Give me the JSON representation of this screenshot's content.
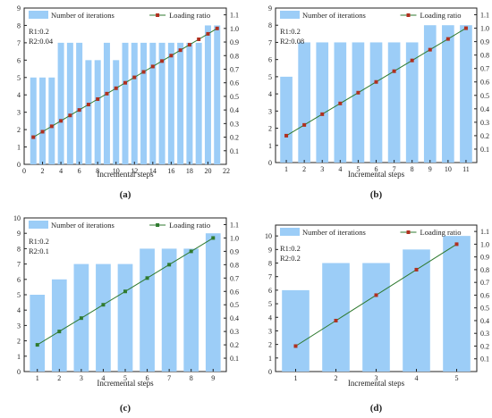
{
  "figure": {
    "colors": {
      "bar": "#9ccdf7",
      "line": "#2f7a2f",
      "axis": "#222222",
      "marker_a": "#b0301f",
      "marker_b": "#2f7a2f"
    }
  },
  "chart_data": [
    {
      "type": "bar",
      "panel_label": "(a)",
      "xlabel": "Incremental steps",
      "legend": [
        "Number of iterations",
        "Loading ratio"
      ],
      "annotations": [
        "R1:0.2",
        "R2:0.04"
      ],
      "x": [
        1,
        2,
        3,
        4,
        5,
        6,
        7,
        8,
        9,
        10,
        11,
        12,
        13,
        14,
        15,
        16,
        17,
        18,
        19,
        20,
        21
      ],
      "series": [
        {
          "name": "Number of iterations",
          "axis": "left",
          "values": [
            5,
            5,
            5,
            7,
            7,
            7,
            6,
            6,
            7,
            6,
            7,
            7,
            7,
            7,
            7,
            7,
            7,
            7,
            7,
            8,
            8
          ]
        },
        {
          "name": "Loading ratio",
          "axis": "right",
          "values": [
            0.2,
            0.24,
            0.28,
            0.32,
            0.36,
            0.4,
            0.44,
            0.48,
            0.52,
            0.56,
            0.6,
            0.64,
            0.68,
            0.72,
            0.76,
            0.8,
            0.84,
            0.88,
            0.92,
            0.96,
            1.0
          ]
        }
      ],
      "xlim": [
        0,
        22
      ],
      "xticks": [
        0,
        2,
        4,
        6,
        8,
        10,
        12,
        14,
        16,
        18,
        20,
        22
      ],
      "ylim": [
        0,
        9
      ],
      "yticks": [
        0,
        1,
        2,
        3,
        4,
        5,
        6,
        7,
        8,
        9
      ],
      "y2lim": [
        0.0,
        1.15
      ],
      "y2ticks": [
        "0.1",
        "0.2",
        "0.3",
        "0.4",
        "0.5",
        "0.6",
        "0.7",
        "0.8",
        "0.9",
        "1.0",
        "1.1"
      ],
      "marker_color": "#b0301f"
    },
    {
      "type": "bar",
      "panel_label": "(b)",
      "xlabel": "Incremental steps",
      "legend": [
        "Number of iterations",
        "Loading ratio"
      ],
      "annotations": [
        "R1:0.2",
        "R2:0.08"
      ],
      "x": [
        1,
        2,
        3,
        4,
        5,
        6,
        7,
        8,
        9,
        10,
        11
      ],
      "series": [
        {
          "name": "Number of iterations",
          "axis": "left",
          "values": [
            5,
            7,
            7,
            7,
            7,
            7,
            7,
            7,
            8,
            8,
            8
          ]
        },
        {
          "name": "Loading ratio",
          "axis": "right",
          "values": [
            0.2,
            0.28,
            0.36,
            0.44,
            0.52,
            0.6,
            0.68,
            0.76,
            0.84,
            0.92,
            1.0
          ]
        }
      ],
      "xlim": [
        0.4,
        11.6
      ],
      "xticks": [
        1,
        2,
        3,
        4,
        5,
        6,
        7,
        8,
        9,
        10,
        11
      ],
      "ylim": [
        0,
        9
      ],
      "yticks": [
        0,
        1,
        2,
        3,
        4,
        5,
        6,
        7,
        8,
        9
      ],
      "y2lim": [
        0.0,
        1.15
      ],
      "y2ticks": [
        "0.1",
        "0.2",
        "0.3",
        "0.4",
        "0.5",
        "0.6",
        "0.7",
        "0.8",
        "0.9",
        "1.0",
        "1.1"
      ],
      "marker_color": "#b0301f"
    },
    {
      "type": "bar",
      "panel_label": "(c)",
      "xlabel": "Incremental steps",
      "legend": [
        "Number of iterations",
        "Loading ratio"
      ],
      "annotations": [
        "R1:0.2",
        "R2:0.1"
      ],
      "x": [
        1,
        2,
        3,
        4,
        5,
        6,
        7,
        8,
        9
      ],
      "series": [
        {
          "name": "Number of iterations",
          "axis": "left",
          "values": [
            5,
            6,
            7,
            7,
            7,
            8,
            8,
            8,
            9
          ]
        },
        {
          "name": "Loading ratio",
          "axis": "right",
          "values": [
            0.2,
            0.3,
            0.4,
            0.5,
            0.6,
            0.7,
            0.8,
            0.9,
            1.0
          ]
        }
      ],
      "xlim": [
        0.4,
        9.6
      ],
      "xticks": [
        1,
        2,
        3,
        4,
        5,
        6,
        7,
        8,
        9
      ],
      "ylim": [
        0,
        10
      ],
      "yticks": [
        0,
        1,
        2,
        3,
        4,
        5,
        6,
        7,
        8,
        9,
        10
      ],
      "y2lim": [
        0.0,
        1.15
      ],
      "y2ticks": [
        "0.1",
        "0.2",
        "0.3",
        "0.4",
        "0.5",
        "0.6",
        "0.7",
        "0.8",
        "0.9",
        "1.0",
        "1.1"
      ],
      "marker_color": "#2f7a2f"
    },
    {
      "type": "bar",
      "panel_label": "(d)",
      "xlabel": "Incremental steps",
      "legend": [
        "Number of iterations",
        "Loading ratio"
      ],
      "annotations": [
        "R1:0.2",
        "R2:0.2"
      ],
      "x": [
        1,
        2,
        3,
        4,
        5
      ],
      "series": [
        {
          "name": "Number of iterations",
          "axis": "left",
          "values": [
            6,
            8,
            8,
            9,
            10
          ]
        },
        {
          "name": "Loading ratio",
          "axis": "right",
          "values": [
            0.2,
            0.4,
            0.6,
            0.8,
            1.0
          ]
        }
      ],
      "xlim": [
        0.5,
        5.5
      ],
      "xticks": [
        1,
        2,
        3,
        4,
        5
      ],
      "ylim": [
        0,
        10.8
      ],
      "yticks": [
        0,
        1,
        2,
        3,
        4,
        5,
        6,
        7,
        8,
        9,
        10
      ],
      "y2lim": [
        0.0,
        1.15
      ],
      "y2ticks": [
        "0.1",
        "0.2",
        "0.3",
        "0.4",
        "0.5",
        "0.6",
        "0.7",
        "0.8",
        "0.9",
        "1.0",
        "1.1"
      ],
      "marker_color": "#b0301f"
    }
  ]
}
